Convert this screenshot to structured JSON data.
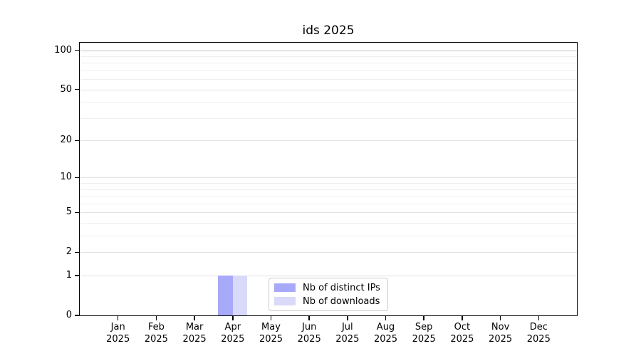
{
  "chart_data": {
    "type": "bar",
    "title": "ids 2025",
    "x_months": [
      "Jan",
      "Feb",
      "Mar",
      "Apr",
      "May",
      "Jun",
      "Jul",
      "Aug",
      "Sep",
      "Oct",
      "Nov",
      "Dec"
    ],
    "x_year": "2025",
    "series": [
      {
        "name": "Nb of distinct IPs",
        "color": "#a9a9fa",
        "values": [
          0,
          0,
          0,
          1,
          0,
          0,
          0,
          0,
          0,
          0,
          0,
          0
        ]
      },
      {
        "name": "Nb of downloads",
        "color": "#d9d9fa",
        "values": [
          0,
          0,
          0,
          1,
          0,
          0,
          0,
          0,
          0,
          0,
          0,
          0
        ]
      }
    ],
    "yscale": "symlog",
    "ylim": [
      0,
      114
    ],
    "yticks": [
      {
        "value": 100,
        "label": "100"
      },
      {
        "value": 50,
        "label": "50"
      },
      {
        "value": 20,
        "label": "20"
      },
      {
        "value": 10,
        "label": "10"
      },
      {
        "value": 5,
        "label": "5"
      },
      {
        "value": 2,
        "label": "2"
      },
      {
        "value": 1,
        "label": "1"
      },
      {
        "value": 0,
        "label": "0"
      }
    ],
    "minor_gridlines": [
      3,
      4,
      6,
      7,
      8,
      9,
      30,
      40,
      60,
      70,
      80,
      90
    ],
    "major_gridlines": [
      1,
      2,
      5,
      10,
      20,
      50
    ],
    "top_gridline": 100,
    "grid_color_minor": "#eeeeee",
    "grid_color_major": "#e2e2e2",
    "grid_color_top": "#c2c2c2",
    "legend_position": "lower center inside",
    "legend": {
      "items": [
        {
          "label": "Nb of distinct IPs"
        },
        {
          "label": "Nb of downloads"
        }
      ]
    }
  }
}
